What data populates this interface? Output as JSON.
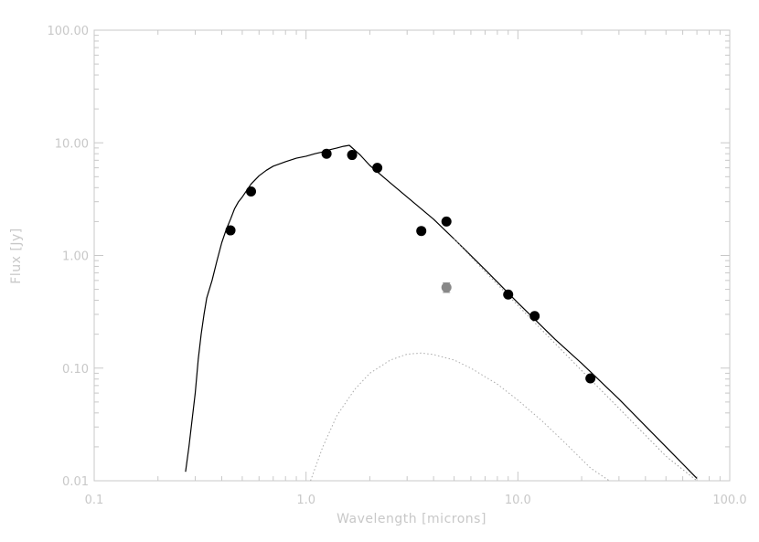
{
  "chart_data": {
    "type": "scatter",
    "title": "",
    "xlabel": "Wavelength [microns]",
    "ylabel": "Flux [Jy]",
    "xscale": "log",
    "yscale": "log",
    "xlim": [
      0.1,
      100.0
    ],
    "ylim": [
      0.01,
      100.0
    ],
    "xtick_labels": [
      "0.1",
      "1.0",
      "10.0",
      "100.0"
    ],
    "xtick_values": [
      0.1,
      1.0,
      10.0,
      100.0
    ],
    "ytick_labels": [
      "0.01",
      "0.10",
      "1.00",
      "10.00",
      "100.00"
    ],
    "ytick_values": [
      0.01,
      0.1,
      1.0,
      10.0,
      100.0
    ],
    "grid": false,
    "series": [
      {
        "kind": "model-line",
        "color": "#000000",
        "x": [
          0.27,
          0.28,
          0.29,
          0.3,
          0.31,
          0.32,
          0.33,
          0.34,
          0.36,
          0.38,
          0.4,
          0.42,
          0.44,
          0.46,
          0.48,
          0.5,
          0.55,
          0.6,
          0.65,
          0.7,
          0.8,
          0.9,
          1.0,
          1.1,
          1.2,
          1.3,
          1.4,
          1.5,
          1.6,
          1.8,
          2.0,
          2.5,
          3.0,
          4.0,
          5.0,
          7.0,
          10.0,
          15.0,
          20.0,
          30.0,
          50.0,
          70.0
        ],
        "y": [
          0.012,
          0.02,
          0.035,
          0.06,
          0.12,
          0.2,
          0.3,
          0.42,
          0.6,
          0.9,
          1.3,
          1.7,
          2.1,
          2.6,
          3.0,
          3.3,
          4.3,
          5.1,
          5.7,
          6.2,
          6.8,
          7.3,
          7.6,
          8.0,
          8.3,
          8.7,
          9.0,
          9.3,
          9.5,
          7.8,
          6.3,
          4.4,
          3.3,
          2.1,
          1.4,
          0.75,
          0.38,
          0.18,
          0.11,
          0.053,
          0.02,
          0.0105
        ]
      },
      {
        "kind": "model-dotted",
        "color": "#999999",
        "x": [
          5.0,
          7.0,
          10.0,
          15.0,
          20.0,
          30.0,
          50.0,
          70.0
        ],
        "y": [
          1.4,
          0.72,
          0.36,
          0.165,
          0.095,
          0.044,
          0.0165,
          0.009
        ]
      },
      {
        "kind": "dust-dotted",
        "color": "#aaaaaa",
        "x": [
          1.05,
          1.2,
          1.4,
          1.7,
          2.0,
          2.5,
          3.0,
          3.5,
          4.0,
          5.0,
          6.0,
          8.0,
          10.0,
          13.0,
          17.0,
          22.0,
          27.0
        ],
        "y": [
          0.01,
          0.02,
          0.038,
          0.065,
          0.09,
          0.118,
          0.133,
          0.136,
          0.132,
          0.118,
          0.1,
          0.072,
          0.052,
          0.034,
          0.021,
          0.013,
          0.0095
        ]
      },
      {
        "kind": "photometry",
        "color": "#000000",
        "x": [
          0.44,
          0.55,
          1.25,
          1.65,
          2.17,
          3.5,
          4.6,
          9.0,
          12.0,
          22.0
        ],
        "y": [
          1.67,
          3.7,
          8.0,
          7.8,
          6.0,
          1.65,
          2.0,
          0.45,
          0.29,
          0.081
        ]
      },
      {
        "kind": "photometry-gray",
        "color": "#888888",
        "x": [
          4.6
        ],
        "y": [
          0.52
        ],
        "yerr": [
          0.05
        ]
      }
    ]
  }
}
